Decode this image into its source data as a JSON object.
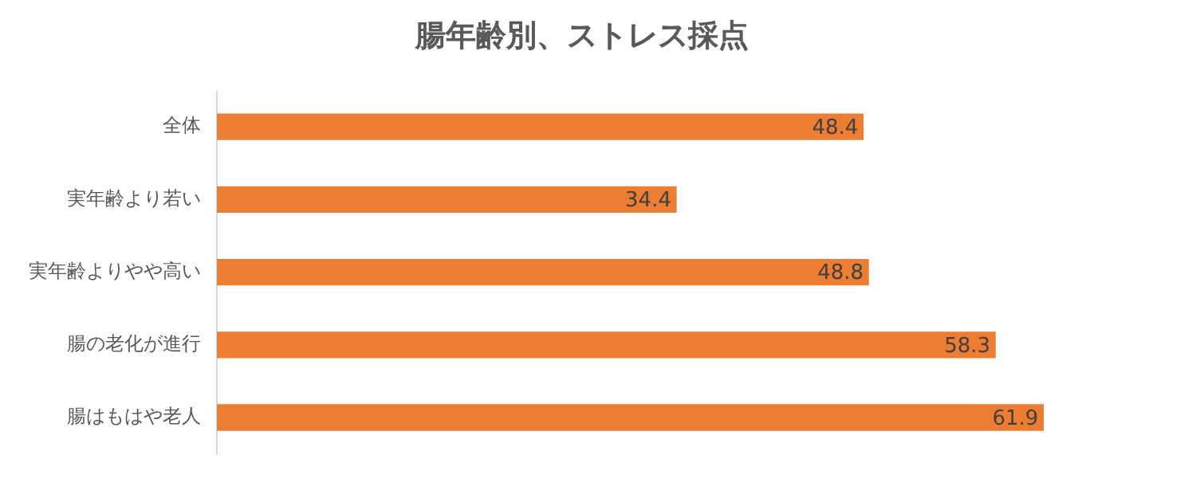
{
  "chart_data": {
    "type": "bar",
    "orientation": "horizontal",
    "title": "腸年齢別、ストレス採点",
    "categories": [
      "全体",
      "実年齢より若い",
      "実年齢よりやや高い",
      "腸の老化が進行",
      "腸はもはや老人"
    ],
    "values": [
      48.4,
      34.4,
      48.8,
      58.3,
      61.9
    ],
    "color": "#ed7d31",
    "tick_labels": "y",
    "data_labels": true
  }
}
